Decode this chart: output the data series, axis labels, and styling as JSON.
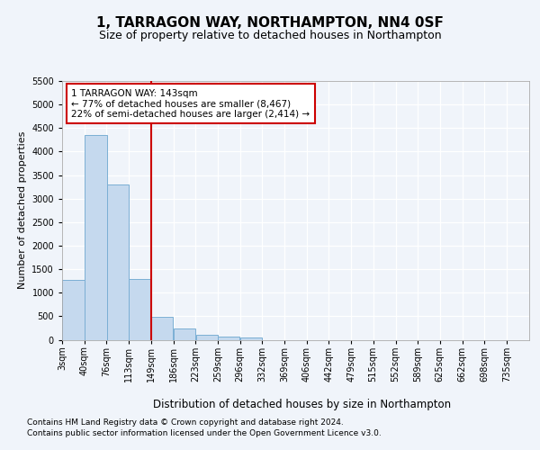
{
  "title": "1, TARRAGON WAY, NORTHAMPTON, NN4 0SF",
  "subtitle": "Size of property relative to detached houses in Northampton",
  "xlabel": "Distribution of detached houses by size in Northampton",
  "ylabel": "Number of detached properties",
  "footer1": "Contains HM Land Registry data © Crown copyright and database right 2024.",
  "footer2": "Contains public sector information licensed under the Open Government Licence v3.0.",
  "annotation_line1": "1 TARRAGON WAY: 143sqm",
  "annotation_line2": "← 77% of detached houses are smaller (8,467)",
  "annotation_line3": "22% of semi-detached houses are larger (2,414) →",
  "bar_color": "#c5d9ee",
  "bar_edge_color": "#7bafd4",
  "annotation_box_edgecolor": "#cc0000",
  "red_line_color": "#cc0000",
  "categories": [
    "3sqm",
    "40sqm",
    "76sqm",
    "113sqm",
    "149sqm",
    "186sqm",
    "223sqm",
    "259sqm",
    "296sqm",
    "332sqm",
    "369sqm",
    "406sqm",
    "442sqm",
    "479sqm",
    "515sqm",
    "552sqm",
    "589sqm",
    "625sqm",
    "662sqm",
    "698sqm",
    "735sqm"
  ],
  "bin_left_edges": [
    3,
    40,
    76,
    113,
    149,
    186,
    223,
    259,
    296,
    332,
    369,
    406,
    442,
    479,
    515,
    552,
    589,
    625,
    662,
    698,
    735
  ],
  "bin_width": 37,
  "values": [
    1280,
    4350,
    3300,
    1300,
    480,
    240,
    100,
    70,
    50,
    0,
    0,
    0,
    0,
    0,
    0,
    0,
    0,
    0,
    0,
    0,
    0
  ],
  "red_line_x": 149,
  "ylim": [
    0,
    5500
  ],
  "yticks": [
    0,
    500,
    1000,
    1500,
    2000,
    2500,
    3000,
    3500,
    4000,
    4500,
    5000,
    5500
  ],
  "fig_bg_color": "#f0f4fa",
  "plot_bg_color": "#f0f4fa",
  "grid_color": "#ffffff",
  "title_fontsize": 11,
  "subtitle_fontsize": 9,
  "ylabel_fontsize": 8,
  "xlabel_fontsize": 8.5,
  "tick_fontsize": 7,
  "footer_fontsize": 6.5
}
